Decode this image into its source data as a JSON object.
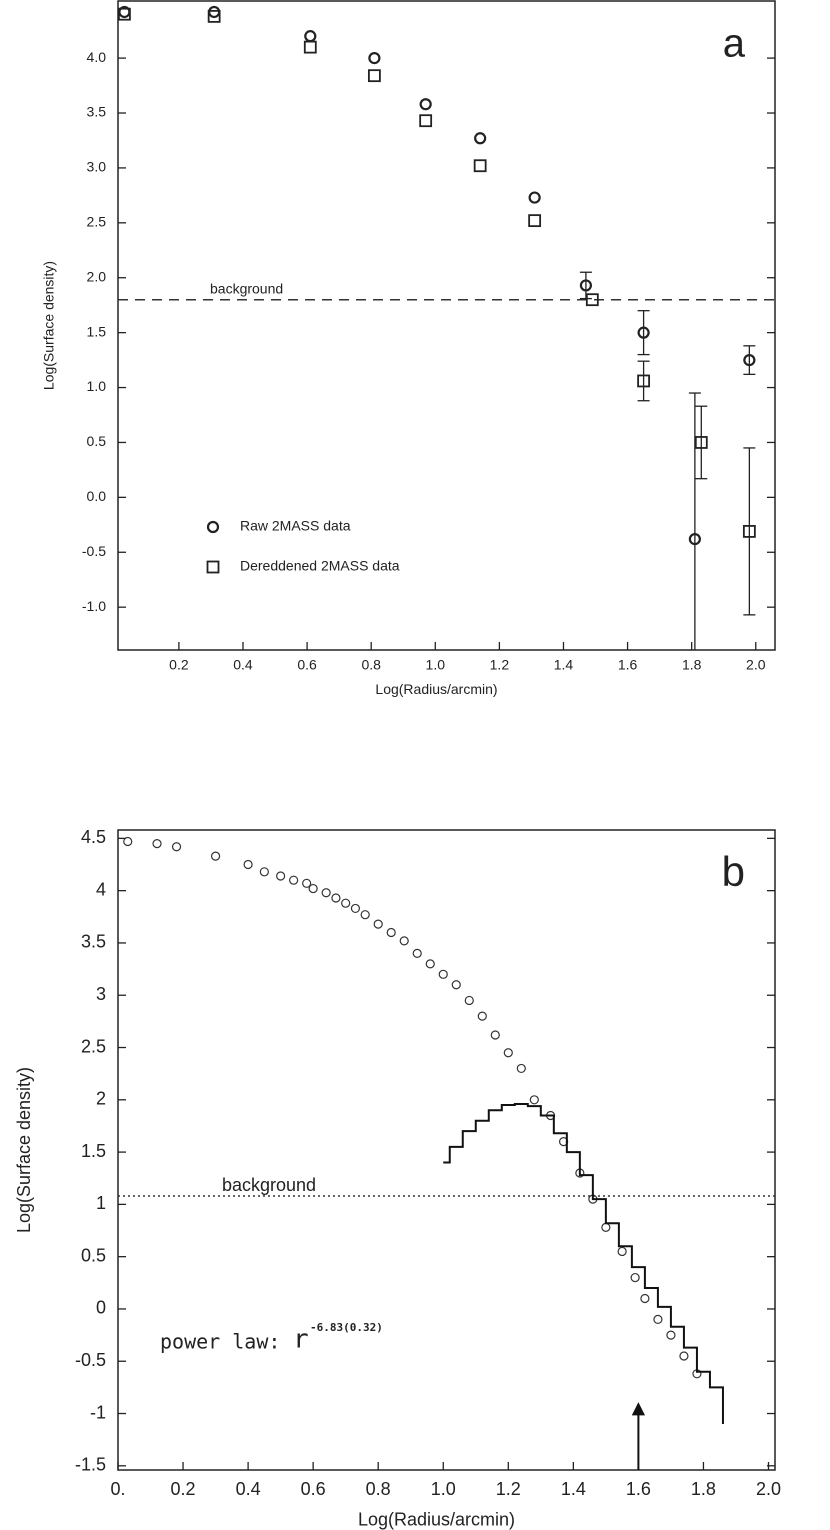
{
  "chart_data": [
    {
      "type": "scatter",
      "panel_label": "a",
      "x_label": "Log(Radius/arcmin)",
      "y_label": "Log(Surface density)",
      "xlim": [
        0.01,
        2.06
      ],
      "ylim": [
        -1.39,
        4.52
      ],
      "xticks": [
        0.2,
        0.4,
        0.6,
        0.8,
        {
          "value": 1.0,
          "label": "1.0"
        },
        1.2,
        1.4,
        1.6,
        1.8,
        {
          "value": 2.0,
          "label": "2.0"
        }
      ],
      "yticks": [
        {
          "value": -1.0,
          "label": "-1.0"
        },
        -0.5,
        {
          "value": 0.0,
          "label": "0.0"
        },
        0.5,
        {
          "value": 1.0,
          "label": "1.0"
        },
        1.5,
        {
          "value": 2.0,
          "label": "2.0"
        },
        2.5,
        {
          "value": 3.0,
          "label": "3.0"
        },
        3.5,
        {
          "value": 4.0,
          "label": "4.0"
        }
      ],
      "background": {
        "value": 1.8,
        "label": "background",
        "style": "dashed"
      },
      "series": [
        {
          "name": "Raw 2MASS data",
          "marker": "circle",
          "color": "#222",
          "x": [
            0.03,
            0.31,
            0.61,
            0.81,
            0.97,
            1.14,
            1.31,
            1.47,
            1.65,
            1.81,
            1.98
          ],
          "values": [
            4.42,
            4.42,
            4.2,
            4.0,
            3.58,
            3.27,
            2.73,
            1.93,
            1.5,
            -0.38,
            1.25
          ],
          "yerr": [
            null,
            null,
            null,
            null,
            null,
            null,
            null,
            0.12,
            0.2,
            1.33,
            0.13
          ]
        },
        {
          "name": "Dereddened 2MASS data",
          "marker": "square",
          "color": "#222",
          "x": [
            0.03,
            0.31,
            0.61,
            0.81,
            0.97,
            1.14,
            1.31,
            1.49,
            1.65,
            1.83,
            1.98
          ],
          "values": [
            4.4,
            4.38,
            4.1,
            3.84,
            3.43,
            3.02,
            2.52,
            1.8,
            1.06,
            0.5,
            -0.31
          ],
          "yerr": [
            null,
            null,
            null,
            null,
            null,
            null,
            null,
            null,
            0.18,
            0.33,
            0.76
          ]
        }
      ]
    },
    {
      "type": "scatter",
      "panel_label": "b",
      "x_label": "Log(Radius/arcmin)",
      "y_label": "Log(Surface density)",
      "annotations": [
        "power law:",
        "r",
        "-6.83(0.32)"
      ],
      "xlim": [
        0.0,
        2.02
      ],
      "ylim": [
        -1.54,
        4.58
      ],
      "xticks": [
        {
          "value": 0.0,
          "label": "0."
        },
        0.2,
        0.4,
        0.6,
        0.8,
        {
          "value": 1.0,
          "label": "1.0"
        },
        1.2,
        1.4,
        1.6,
        1.8,
        {
          "value": 2.0,
          "label": "2.0"
        }
      ],
      "yticks": [
        -1.5,
        -1,
        -0.5,
        0,
        0.5,
        1,
        1.5,
        2,
        2.5,
        3,
        3.5,
        4,
        4.5
      ],
      "background": {
        "value": 1.08,
        "label": "background",
        "style": "dotted"
      },
      "series": [
        {
          "marker": "circle",
          "color": "#333",
          "x": [
            0.03,
            0.12,
            0.18,
            0.3,
            0.4,
            0.45,
            0.5,
            0.54,
            0.58,
            0.6,
            0.64,
            0.67,
            0.7,
            0.73,
            0.76,
            0.8,
            0.84,
            0.88,
            0.92,
            0.96,
            1.0,
            1.04,
            1.08,
            1.12,
            1.16,
            1.2,
            1.24,
            1.28,
            1.33,
            1.37,
            1.42,
            1.46,
            1.5,
            1.55,
            1.59,
            1.62,
            1.66,
            1.7,
            1.74,
            1.78
          ],
          "values": [
            4.47,
            4.45,
            4.42,
            4.33,
            4.25,
            4.18,
            4.14,
            4.1,
            4.07,
            4.02,
            3.98,
            3.93,
            3.88,
            3.83,
            3.77,
            3.68,
            3.6,
            3.52,
            3.4,
            3.3,
            3.2,
            3.1,
            2.95,
            2.8,
            2.62,
            2.45,
            2.3,
            2.0,
            1.85,
            1.6,
            1.3,
            1.05,
            0.78,
            0.55,
            0.3,
            0.1,
            -0.1,
            -0.25,
            -0.45,
            -0.62
          ]
        },
        {
          "marker": "step",
          "color": "#111",
          "x": [
            1.0,
            1.02,
            1.06,
            1.1,
            1.14,
            1.18,
            1.22,
            1.26,
            1.3,
            1.34,
            1.38,
            1.42,
            1.46,
            1.5,
            1.54,
            1.58,
            1.62,
            1.66,
            1.7,
            1.74,
            1.78,
            1.82,
            1.86
          ],
          "values": [
            1.4,
            1.55,
            1.7,
            1.8,
            1.9,
            1.95,
            1.96,
            1.94,
            1.85,
            1.68,
            1.5,
            1.28,
            1.05,
            0.82,
            0.6,
            0.4,
            0.2,
            0.02,
            -0.17,
            -0.37,
            -0.6,
            -0.75,
            -1.1
          ]
        },
        {
          "marker": "triangle",
          "color": "#111",
          "x": [
            1.6
          ],
          "values": [
            -0.97
          ]
        }
      ]
    }
  ]
}
